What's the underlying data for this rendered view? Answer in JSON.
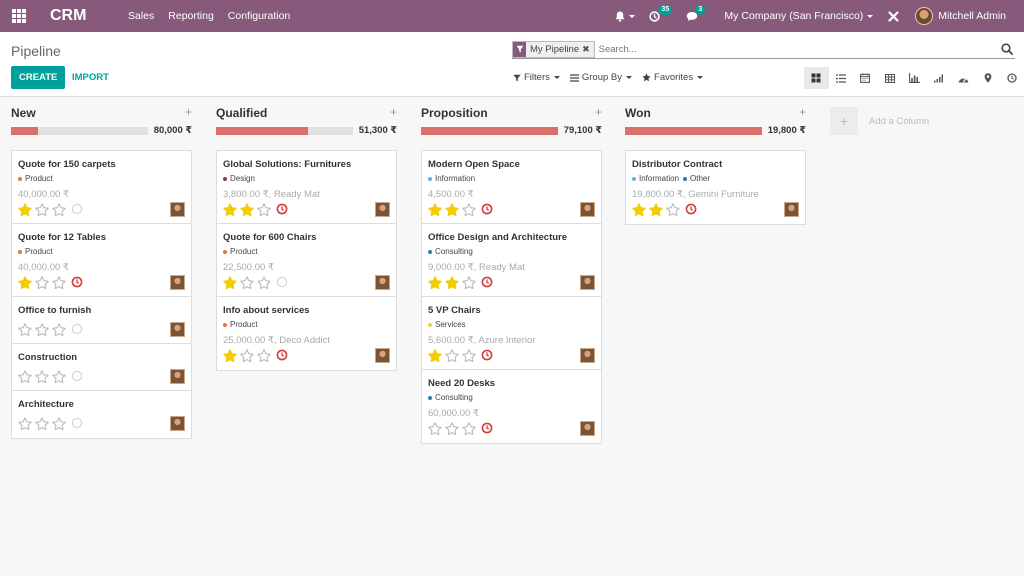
{
  "topbar": {
    "brand": "CRM",
    "menu": [
      "Sales",
      "Reporting",
      "Configuration"
    ],
    "activity_count": "35",
    "message_count": "3",
    "company": "My Company (San Francisco)",
    "user": "Mitchell Admin"
  },
  "control": {
    "title": "Pipeline",
    "create_label": "CREATE",
    "import_label": "IMPORT",
    "facet_label": "My Pipeline",
    "search_placeholder": "Search...",
    "filters_label": "Filters",
    "groupby_label": "Group By",
    "favorites_label": "Favorites"
  },
  "views": [
    "kanban-icon",
    "list-icon",
    "calendar-icon",
    "pivot-icon",
    "graph-icon",
    "cohort-icon",
    "dashboard-icon",
    "map-icon",
    "activity-icon"
  ],
  "colors": {
    "brand": "#875a7b",
    "accent": "#00a09d",
    "progress": "#d9706b",
    "star_on": "#f3cc00",
    "star_off": "#bbbbbb",
    "clock_overdue": "#d23f3a",
    "clock_none": "#cccccc"
  },
  "columns": [
    {
      "title": "New",
      "total": "80,000 ₹",
      "progress": 0.2,
      "cards": [
        {
          "title": "Quote for 150 carpets",
          "tags": [
            {
              "label": "Product",
              "color": "#e8734b"
            }
          ],
          "amount": "40,000.00 ₹",
          "stars": 1,
          "activity": "none"
        },
        {
          "title": "Quote for 12 Tables",
          "tags": [
            {
              "label": "Product",
              "color": "#e8734b"
            }
          ],
          "amount": "40,000.00 ₹",
          "stars": 1,
          "activity": "overdue"
        },
        {
          "title": "Office to furnish",
          "tags": [],
          "amount": "",
          "stars": 0,
          "activity": "none"
        },
        {
          "title": "Construction",
          "tags": [],
          "amount": "",
          "stars": 0,
          "activity": "none"
        },
        {
          "title": "Architecture",
          "tags": [],
          "amount": "",
          "stars": 0,
          "activity": "none"
        }
      ]
    },
    {
      "title": "Qualified",
      "total": "51,300 ₹",
      "progress": 0.67,
      "cards": [
        {
          "title": "Global Solutions: Furnitures",
          "tags": [
            {
              "label": "Design",
              "color": "#7a3e6a"
            }
          ],
          "amount": "3,800.00 ₹, Ready Mat",
          "stars": 2,
          "activity": "overdue"
        },
        {
          "title": "Quote for 600 Chairs",
          "tags": [
            {
              "label": "Product",
              "color": "#e8734b"
            }
          ],
          "amount": "22,500.00 ₹",
          "stars": 1,
          "activity": "none"
        },
        {
          "title": "Info about services",
          "tags": [
            {
              "label": "Product",
              "color": "#e8734b"
            }
          ],
          "amount": "25,000.00 ₹, Deco Addict",
          "stars": 1,
          "activity": "overdue"
        }
      ]
    },
    {
      "title": "Proposition",
      "total": "79,100 ₹",
      "progress": 1.0,
      "cards": [
        {
          "title": "Modern Open Space",
          "tags": [
            {
              "label": "Information",
              "color": "#5fb0e0"
            }
          ],
          "amount": "4,500.00 ₹",
          "stars": 2,
          "activity": "overdue"
        },
        {
          "title": "Office Design and Architecture",
          "tags": [
            {
              "label": "Consulting",
              "color": "#2c7ba0"
            }
          ],
          "amount": "9,000.00 ₹, Ready Mat",
          "stars": 2,
          "activity": "overdue"
        },
        {
          "title": "5 VP Chairs",
          "tags": [
            {
              "label": "Services",
              "color": "#f0d24a"
            }
          ],
          "amount": "5,600.00 ₹, Azure Interior",
          "stars": 1,
          "activity": "overdue"
        },
        {
          "title": "Need 20 Desks",
          "tags": [
            {
              "label": "Consulting",
              "color": "#2c7ba0"
            }
          ],
          "amount": "60,000.00 ₹",
          "stars": 0,
          "activity": "overdue"
        }
      ]
    },
    {
      "title": "Won",
      "total": "19,800 ₹",
      "progress": 1.0,
      "cards": [
        {
          "title": "Distributor Contract",
          "tags": [
            {
              "label": "Information",
              "color": "#5fb0e0"
            },
            {
              "label": "Other",
              "color": "#3a6f9e"
            }
          ],
          "amount": "19,800.00 ₹, Gemini Furniture",
          "stars": 2,
          "activity": "overdue"
        }
      ]
    }
  ],
  "add_column_label": "Add a Column"
}
